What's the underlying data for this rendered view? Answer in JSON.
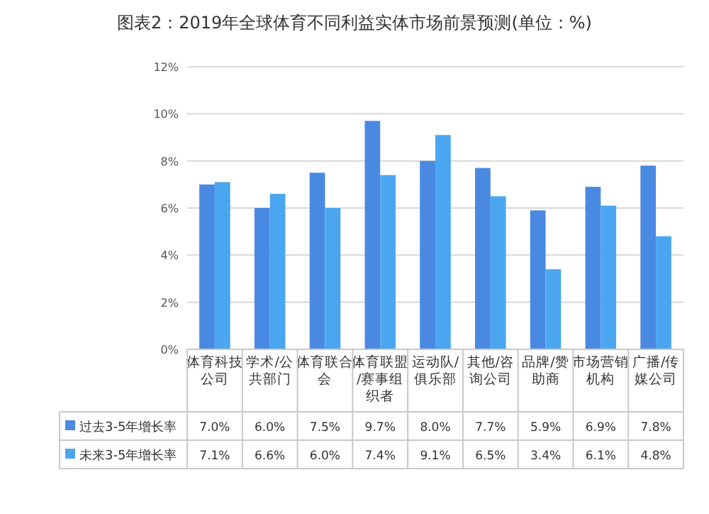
{
  "chart_data": {
    "type": "bar",
    "title": "图表2：2019年全球体育不同利益实体市场前景预测(单位：%)",
    "categories": [
      "体育科技公司",
      "学术/公共部门",
      "体育联合会",
      "体育联盟/赛事组织者",
      "运动队/俱乐部",
      "其他/咨询公司",
      "品牌/赞助商",
      "市场营销机构",
      "广播/传媒公司"
    ],
    "series": [
      {
        "name": "过去3-5年增长率",
        "color": "#4a89e2",
        "values": [
          7.0,
          6.0,
          7.5,
          9.7,
          8.0,
          7.7,
          5.9,
          6.9,
          7.8
        ],
        "value_labels": [
          "7.0%",
          "6.0%",
          "7.5%",
          "9.7%",
          "8.0%",
          "7.7%",
          "5.9%",
          "6.9%",
          "7.8%"
        ]
      },
      {
        "name": "未来3-5年增长率",
        "color": "#4ba6f0",
        "values": [
          7.1,
          6.6,
          6.0,
          7.4,
          9.1,
          6.5,
          3.4,
          6.1,
          4.8
        ],
        "value_labels": [
          "7.1%",
          "6.6%",
          "6.0%",
          "7.4%",
          "9.1%",
          "6.5%",
          "3.4%",
          "6.1%",
          "4.8%"
        ]
      }
    ],
    "ylim": [
      0,
      12
    ],
    "yticks": [
      {
        "value": 0,
        "label": "0%"
      },
      {
        "value": 2,
        "label": "2%"
      },
      {
        "value": 4,
        "label": "4%"
      },
      {
        "value": 6,
        "label": "6%"
      },
      {
        "value": 8,
        "label": "8%"
      },
      {
        "value": 10,
        "label": "10%"
      },
      {
        "value": 12,
        "label": "12%"
      }
    ],
    "grid": "y",
    "legend": "bottom"
  }
}
